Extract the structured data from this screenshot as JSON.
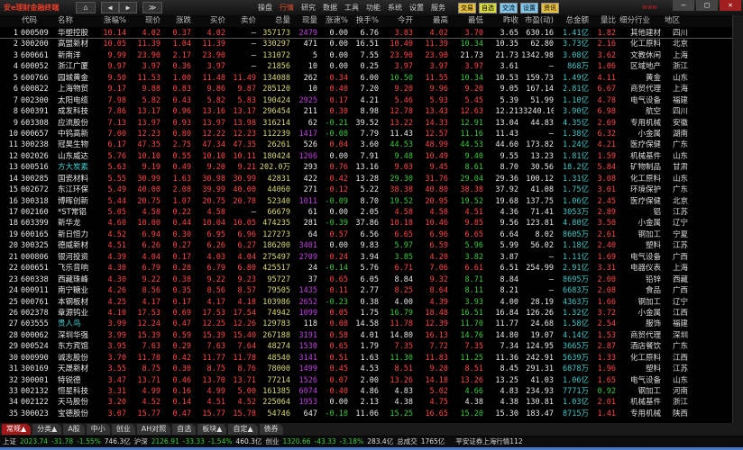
{
  "app": {
    "title": "安e理财金融终端",
    "brand": "www"
  },
  "nav_buttons": [
    "⌂",
    "◀",
    "▶",
    "≫"
  ],
  "menu": [
    {
      "label": "操盘"
    },
    {
      "label": "行情",
      "active": true
    },
    {
      "label": "研究"
    },
    {
      "label": "数据"
    },
    {
      "label": "工具"
    },
    {
      "label": "功能"
    },
    {
      "label": "系统"
    },
    {
      "label": "设置"
    },
    {
      "label": "服务"
    }
  ],
  "quick_buttons": [
    {
      "label": "交易",
      "color": "#e8c040"
    },
    {
      "label": "自选",
      "color": "#d8d840"
    },
    {
      "label": "交流",
      "color": "#80c8f0"
    },
    {
      "label": "设置",
      "color": "#80c8f0"
    },
    {
      "label": "资讯",
      "color": "#e8c040"
    }
  ],
  "window_controls": [
    "–",
    "□",
    "✕"
  ],
  "table": {
    "columns": [
      "",
      "代码",
      "名称",
      "涨幅%",
      "现价",
      "涨跌",
      "买价",
      "卖价",
      "总量",
      "现量",
      "涨速%",
      "换手%",
      "今开",
      "最高",
      "最低",
      "昨收",
      "市盈(动)",
      "总金额",
      "量比",
      "细分行业",
      "地区"
    ],
    "highlight_codes": [
      "600516",
      "603555"
    ],
    "colors": {
      "up": "#ff4646",
      "down": "#3cc83c",
      "flat": "#e8e8e8",
      "volume": "#d8d870",
      "amount": "#40c8c8",
      "current_volume": "#c040e0"
    },
    "rows": [
      [
        "1",
        "000509",
        "华塑控股",
        "10.14",
        "4.02",
        "0.37",
        "4.02",
        "—",
        "357173",
        "2479",
        "0.00",
        "6.76",
        "3.83",
        "4.02",
        "3.70",
        "3.65",
        "630.16",
        "1.41亿",
        "1.82",
        "其他建材",
        "四川"
      ],
      [
        "2",
        "300200",
        "高盟新材",
        "10.05",
        "11.39",
        "1.04",
        "11.39",
        "—",
        "330297",
        "471",
        "0.00",
        "16.51",
        "10.40",
        "11.39",
        "10.34",
        "10.35",
        "62.80",
        "3.73亿",
        "2.16",
        "化工原料",
        "北京"
      ],
      [
        "3",
        "600661",
        "新南洋",
        "9.99",
        "23.90",
        "2.17",
        "23.90",
        "—",
        "131072",
        "5",
        "0.00",
        "7.55",
        "23.90",
        "23.90",
        "21.73",
        "21.73",
        "1342.98",
        "3.08亿",
        "3.62",
        "文教休闲",
        "上海"
      ],
      [
        "4",
        "600052",
        "浙江广厦",
        "9.97",
        "3.97",
        "0.36",
        "3.97",
        "—",
        "21856",
        "10",
        "0.00",
        "0.25",
        "3.97",
        "3.97",
        "3.97",
        "3.61",
        "—",
        "868万",
        "1.06",
        "区域地产",
        "浙江"
      ],
      [
        "5",
        "600766",
        "园城黄金",
        "9.50",
        "11.53",
        "1.00",
        "11.48",
        "11.49",
        "134088",
        "262",
        "0.34",
        "6.00",
        "10.50",
        "11.55",
        "10.34",
        "10.53",
        "159.73",
        "1.49亿",
        "4.11",
        "黄金",
        "山东"
      ],
      [
        "6",
        "600822",
        "上海物贸",
        "9.17",
        "9.88",
        "0.83",
        "9.86",
        "9.87",
        "285120",
        "10",
        "0.40",
        "7.20",
        "9.20",
        "9.96",
        "9.20",
        "9.05",
        "167.14",
        "2.81亿",
        "6.67",
        "商贸代理",
        "上海"
      ],
      [
        "7",
        "002300",
        "太阳电缆",
        "7.98",
        "5.82",
        "0.43",
        "5.82",
        "5.83",
        "190424",
        "2925",
        "0.17",
        "4.21",
        "5.46",
        "5.93",
        "5.45",
        "5.39",
        "51.99",
        "1.10亿",
        "4.78",
        "电气设备",
        "福建"
      ],
      [
        "8",
        "600391",
        "成发科技",
        "7.86",
        "13.17",
        "0.96",
        "13.16",
        "13.17",
        "296454",
        "211",
        "0.30",
        "8.98",
        "12.78",
        "13.43",
        "12.63",
        "12.21",
        "33240.10",
        "3.90亿",
        "6.98",
        "航空",
        "四川"
      ],
      [
        "9",
        "603308",
        "应流股份",
        "7.13",
        "13.97",
        "0.93",
        "13.97",
        "13.98",
        "316214",
        "62",
        "-0.21",
        "39.52",
        "13.22",
        "14.33",
        "12.91",
        "13.04",
        "44.83",
        "4.35亿",
        "2.69",
        "专用机械",
        "安徽"
      ],
      [
        "10",
        "000657",
        "中钨高新",
        "7.00",
        "12.23",
        "0.80",
        "12.22",
        "12.23",
        "112239",
        "1417",
        "-0.08",
        "7.79",
        "11.43",
        "12.57",
        "11.16",
        "11.43",
        "—",
        "1.38亿",
        "6.32",
        "小金属",
        "湖南"
      ],
      [
        "11",
        "300238",
        "冠昊生物",
        "6.17",
        "47.35",
        "2.75",
        "47.34",
        "47.35",
        "26261",
        "526",
        "0.04",
        "3.60",
        "44.53",
        "48.99",
        "44.53",
        "44.60",
        "173.82",
        "1.24亿",
        "4.21",
        "医疗保健",
        "广东"
      ],
      [
        "12",
        "002026",
        "山东威达",
        "5.76",
        "10.10",
        "0.55",
        "10.10",
        "10.11",
        "180424",
        "1266",
        "0.00",
        "7.91",
        "9.48",
        "10.49",
        "9.40",
        "9.55",
        "13.23",
        "1.81亿",
        "1.59",
        "机械基件",
        "山东"
      ],
      [
        "13",
        "600516",
        "方大炭素",
        "5.63",
        "9.19",
        "0.49",
        "9.20",
        "9.21",
        "202.0万",
        "293",
        "0.76",
        "13.16",
        "9.03",
        "9.45",
        "8.61",
        "8.70",
        "30.56",
        "18.2亿",
        "5.84",
        "矿物制品",
        "甘肃"
      ],
      [
        "14",
        "300285",
        "国瓷材料",
        "5.55",
        "30.99",
        "1.63",
        "30.98",
        "30.99",
        "42831",
        "422",
        "0.42",
        "13.28",
        "29.30",
        "31.76",
        "29.04",
        "29.36",
        "100.12",
        "1.31亿",
        "3.08",
        "化工原料",
        "山东"
      ],
      [
        "15",
        "002672",
        "东江环保",
        "5.49",
        "40.00",
        "2.08",
        "39.99",
        "40.00",
        "44060",
        "271",
        "0.12",
        "5.22",
        "38.38",
        "40.80",
        "38.38",
        "37.92",
        "41.08",
        "1.75亿",
        "3.01",
        "环境保护",
        "广东"
      ],
      [
        "16",
        "300318",
        "博晖创新",
        "5.44",
        "20.75",
        "1.07",
        "20.75",
        "20.78",
        "52340",
        "1011",
        "-0.09",
        "8.70",
        "19.52",
        "20.95",
        "19.52",
        "19.68",
        "137.75",
        "1.06亿",
        "2.45",
        "医疗保健",
        "北京"
      ],
      [
        "17",
        "002160",
        "*ST常铝",
        "5.05",
        "4.58",
        "0.22",
        "4.58",
        "—",
        "66679",
        "61",
        "0.00",
        "2.05",
        "4.58",
        "4.58",
        "4.51",
        "4.36",
        "71.41",
        "3053万",
        "2.89",
        "铝",
        "江苏"
      ],
      [
        "18",
        "603399",
        "新华龙",
        "4.60",
        "10.00",
        "0.44",
        "10.04",
        "10.05",
        "474235",
        "281",
        "-0.39",
        "37.86",
        "10.18",
        "10.46",
        "9.85",
        "9.56",
        "123.81",
        "4.80亿",
        "3.50",
        "小金属",
        "辽宁"
      ],
      [
        "19",
        "600165",
        "新日恒力",
        "4.52",
        "6.94",
        "0.30",
        "6.95",
        "6.96",
        "127273",
        "64",
        "0.57",
        "6.56",
        "6.65",
        "6.96",
        "6.65",
        "6.64",
        "8.02",
        "8605万",
        "2.61",
        "钢加工",
        "宁夏"
      ],
      [
        "20",
        "300325",
        "德威新材",
        "4.51",
        "6.26",
        "0.27",
        "6.26",
        "6.27",
        "186200",
        "3401",
        "0.00",
        "9.83",
        "5.97",
        "6.59",
        "5.96",
        "5.99",
        "56.02",
        "1.18亿",
        "2.40",
        "塑料",
        "江苏"
      ],
      [
        "21",
        "000806",
        "银河投资",
        "4.39",
        "4.04",
        "0.17",
        "4.03",
        "4.04",
        "275497",
        "2709",
        "0.24",
        "3.94",
        "3.85",
        "4.20",
        "3.82",
        "3.87",
        "—",
        "1.11亿",
        "1.69",
        "电气设备",
        "广西"
      ],
      [
        "22",
        "600651",
        "飞乐音响",
        "4.30",
        "6.79",
        "0.28",
        "6.79",
        "6.80",
        "425517",
        "24",
        "-0.14",
        "5.76",
        "6.71",
        "7.06",
        "6.61",
        "6.51",
        "254.99",
        "2.91亿",
        "3.31",
        "电器仪表",
        "上海"
      ],
      [
        "23",
        "600338",
        "西藏珠峰",
        "4.30",
        "9.22",
        "0.38",
        "9.22",
        "9.23",
        "95727",
        "37",
        "0.65",
        "6.05",
        "8.84",
        "9.32",
        "8.71",
        "8.84",
        "—",
        "8695万",
        "2.00",
        "铅锌",
        "西藏"
      ],
      [
        "24",
        "000911",
        "南宁糖业",
        "4.26",
        "8.56",
        "0.35",
        "8.56",
        "8.57",
        "79505",
        "1435",
        "0.11",
        "2.77",
        "8.25",
        "8.64",
        "8.11",
        "8.21",
        "—",
        "6683万",
        "2.08",
        "食品",
        "广西"
      ],
      [
        "25",
        "000761",
        "本钢板材",
        "4.25",
        "4.17",
        "0.17",
        "4.17",
        "4.18",
        "103986",
        "2652",
        "-0.23",
        "0.38",
        "4.00",
        "4.39",
        "3.93",
        "4.00",
        "28.19",
        "4363万",
        "1.66",
        "钢加工",
        "辽宁"
      ],
      [
        "26",
        "002378",
        "章源钨业",
        "4.10",
        "17.53",
        "0.69",
        "17.53",
        "17.54",
        "74942",
        "1099",
        "0.05",
        "1.75",
        "16.79",
        "18.48",
        "16.51",
        "16.84",
        "126.26",
        "1.32亿",
        "3.72",
        "小金属",
        "江西"
      ],
      [
        "27",
        "603555",
        "贵人鸟",
        "3.99",
        "12.24",
        "0.47",
        "12.25",
        "12.26",
        "129783",
        "118",
        "0.08",
        "14.58",
        "11.78",
        "12.39",
        "11.70",
        "11.77",
        "24.68",
        "1.58亿",
        "2.54",
        "服饰",
        "福建"
      ],
      [
        "28",
        "000062",
        "深圳华强",
        "3.99",
        "15.39",
        "0.59",
        "15.39",
        "15.40",
        "267188",
        "3191",
        "0.58",
        "4.01",
        "14.80",
        "16.13",
        "14.76",
        "14.80",
        "19.07",
        "4.14亿",
        "1.53",
        "商贸代理",
        "深圳"
      ],
      [
        "29",
        "000524",
        "东方宾馆",
        "3.95",
        "7.63",
        "0.29",
        "7.63",
        "7.64",
        "48274",
        "1530",
        "0.65",
        "1.79",
        "7.35",
        "7.72",
        "7.35",
        "7.34",
        "124.95",
        "3665万",
        "2.87",
        "酒店餐饮",
        "广东"
      ],
      [
        "30",
        "000990",
        "诚志股份",
        "3.70",
        "11.78",
        "0.42",
        "11.77",
        "11.78",
        "48540",
        "3141",
        "0.51",
        "1.63",
        "11.30",
        "11.83",
        "11.25",
        "11.36",
        "242.91",
        "5639万",
        "1.33",
        "化工原料",
        "江西"
      ],
      [
        "31",
        "300169",
        "天晟新材",
        "3.55",
        "8.75",
        "0.30",
        "8.75",
        "8.76",
        "78000",
        "1499",
        "0.45",
        "4.53",
        "8.51",
        "9.20",
        "8.51",
        "8.45",
        "291.31",
        "6878万",
        "1.96",
        "塑料",
        "江苏"
      ],
      [
        "32",
        "300001",
        "特锐德",
        "3.47",
        "13.71",
        "0.46",
        "13.70",
        "13.71",
        "77214",
        "1526",
        "0.07",
        "2.00",
        "13.26",
        "14.18",
        "13.26",
        "13.25",
        "41.03",
        "1.06亿",
        "1.65",
        "电气设备",
        "山东"
      ],
      [
        "33",
        "002132",
        "恒星科技",
        "3.31",
        "4.99",
        "0.16",
        "4.99",
        "5.00",
        "161385",
        "6074",
        "0.40",
        "4.86",
        "4.83",
        "5.02",
        "4.66",
        "4.83",
        "234.93",
        "7771万",
        "0.92",
        "钢加工",
        "河南"
      ],
      [
        "34",
        "002122",
        "天马股份",
        "3.20",
        "4.52",
        "0.14",
        "4.51",
        "4.52",
        "225064",
        "1953",
        "0.00",
        "2.13",
        "4.38",
        "4.75",
        "4.38",
        "4.38",
        "130.81",
        "1.03亿",
        "2.01",
        "机械基件",
        "浙江"
      ],
      [
        "35",
        "300023",
        "宝德股份",
        "3.07",
        "15.77",
        "0.47",
        "15.77",
        "15.78",
        "54746",
        "647",
        "-0.18",
        "11.06",
        "15.25",
        "16.65",
        "15.20",
        "15.30",
        "183.47",
        "8715万",
        "1.41",
        "专用机械",
        "陕西"
      ]
    ]
  },
  "tabs": [
    {
      "label": "常规▲",
      "active": true
    },
    {
      "label": "分类▲"
    },
    {
      "label": "A股"
    },
    {
      "label": "中小"
    },
    {
      "label": "创业"
    },
    {
      "label": "AH对照"
    },
    {
      "label": "自选"
    },
    {
      "label": "板块▲"
    },
    {
      "label": "自定▲"
    },
    {
      "label": "债券"
    }
  ],
  "status": {
    "sh_label": "上证",
    "sh_value": "2023.74",
    "sh_change": "-31.78",
    "sh_pct": "-1.55%",
    "sh_amount": "746.3亿",
    "hs_label": "沪深",
    "hs_value": "2126.91",
    "hs_change": "-33.33",
    "hs_pct": "-1.54%",
    "hs_amount": "460.3亿",
    "cy_label": "创业",
    "cy_value": "1320.66",
    "cy_change": "-43.33",
    "cy_pct": "-3.18%",
    "cy_amount": "283.4亿",
    "total_label": "总成交",
    "total_value": "1765亿",
    "server": "平安证券上海行情112"
  }
}
